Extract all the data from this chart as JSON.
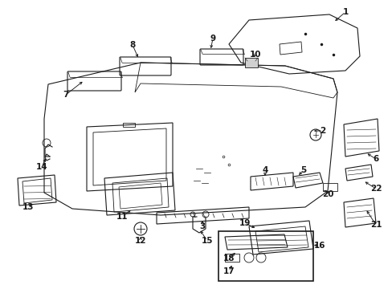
{
  "background_color": "#ffffff",
  "line_color": "#1a1a1a",
  "fig_width": 4.89,
  "fig_height": 3.6,
  "dpi": 100,
  "font_size": 7.5
}
